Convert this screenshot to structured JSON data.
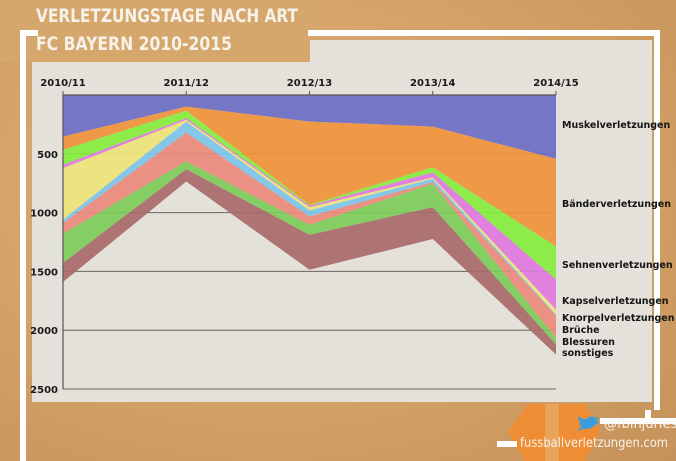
{
  "title": "VERLETZUNGSTAGE NACH ART",
  "subtitle": "FC BAYERN 2010-2015",
  "footer": {
    "twitter_handle": "@fbinjuries",
    "website": "fussballverletzungen.com",
    "icon": "twitter-bird-icon"
  },
  "colors": {
    "background": "#d4a56b",
    "panel": "#e4e0da",
    "frame": "#ffffff",
    "badge": "#f28c30"
  },
  "chart_data": {
    "type": "area",
    "stacked": true,
    "y_inverted": true,
    "categories": [
      "2010/11",
      "2011/12",
      "2012/13",
      "2013/14",
      "2014/15"
    ],
    "ylim": [
      0,
      2500
    ],
    "yticks": [
      500,
      1000,
      1500,
      2000,
      2500
    ],
    "grid": true,
    "legend_placement": "right",
    "series": [
      {
        "name": "Muskelverletzungen",
        "color": "#6c6cc4",
        "values": [
          354,
          99,
          226,
          269,
          543
        ]
      },
      {
        "name": "Bänderverletzungen",
        "color": "#f0923a",
        "values": [
          113,
          34,
          708,
          345,
          745
        ]
      },
      {
        "name": "Sehnenverletzungen",
        "color": "#86ec3e",
        "values": [
          127,
          65,
          8,
          45,
          282
        ]
      },
      {
        "name": "Kapselverletzungen",
        "color": "#e078e0",
        "values": [
          28,
          14,
          12,
          43,
          255
        ]
      },
      {
        "name": "Knorpelverletzungen",
        "color": "#eee47a",
        "values": [
          439,
          14,
          28,
          11,
          43
        ]
      },
      {
        "color": "#7cc4ea",
        "values": [
          29,
          94,
          51,
          28,
          7
        ]
      },
      {
        "name": "Brüche",
        "color": "#ea8a7c",
        "values": [
          90,
          246,
          71,
          15,
          191
        ]
      },
      {
        "name": "Blessuren",
        "color": "#7ccc5a",
        "values": [
          249,
          65,
          85,
          198,
          56
        ]
      },
      {
        "name": "sonstiges",
        "color": "#a86a6a",
        "values": [
          161,
          105,
          297,
          271,
          85
        ]
      }
    ]
  }
}
